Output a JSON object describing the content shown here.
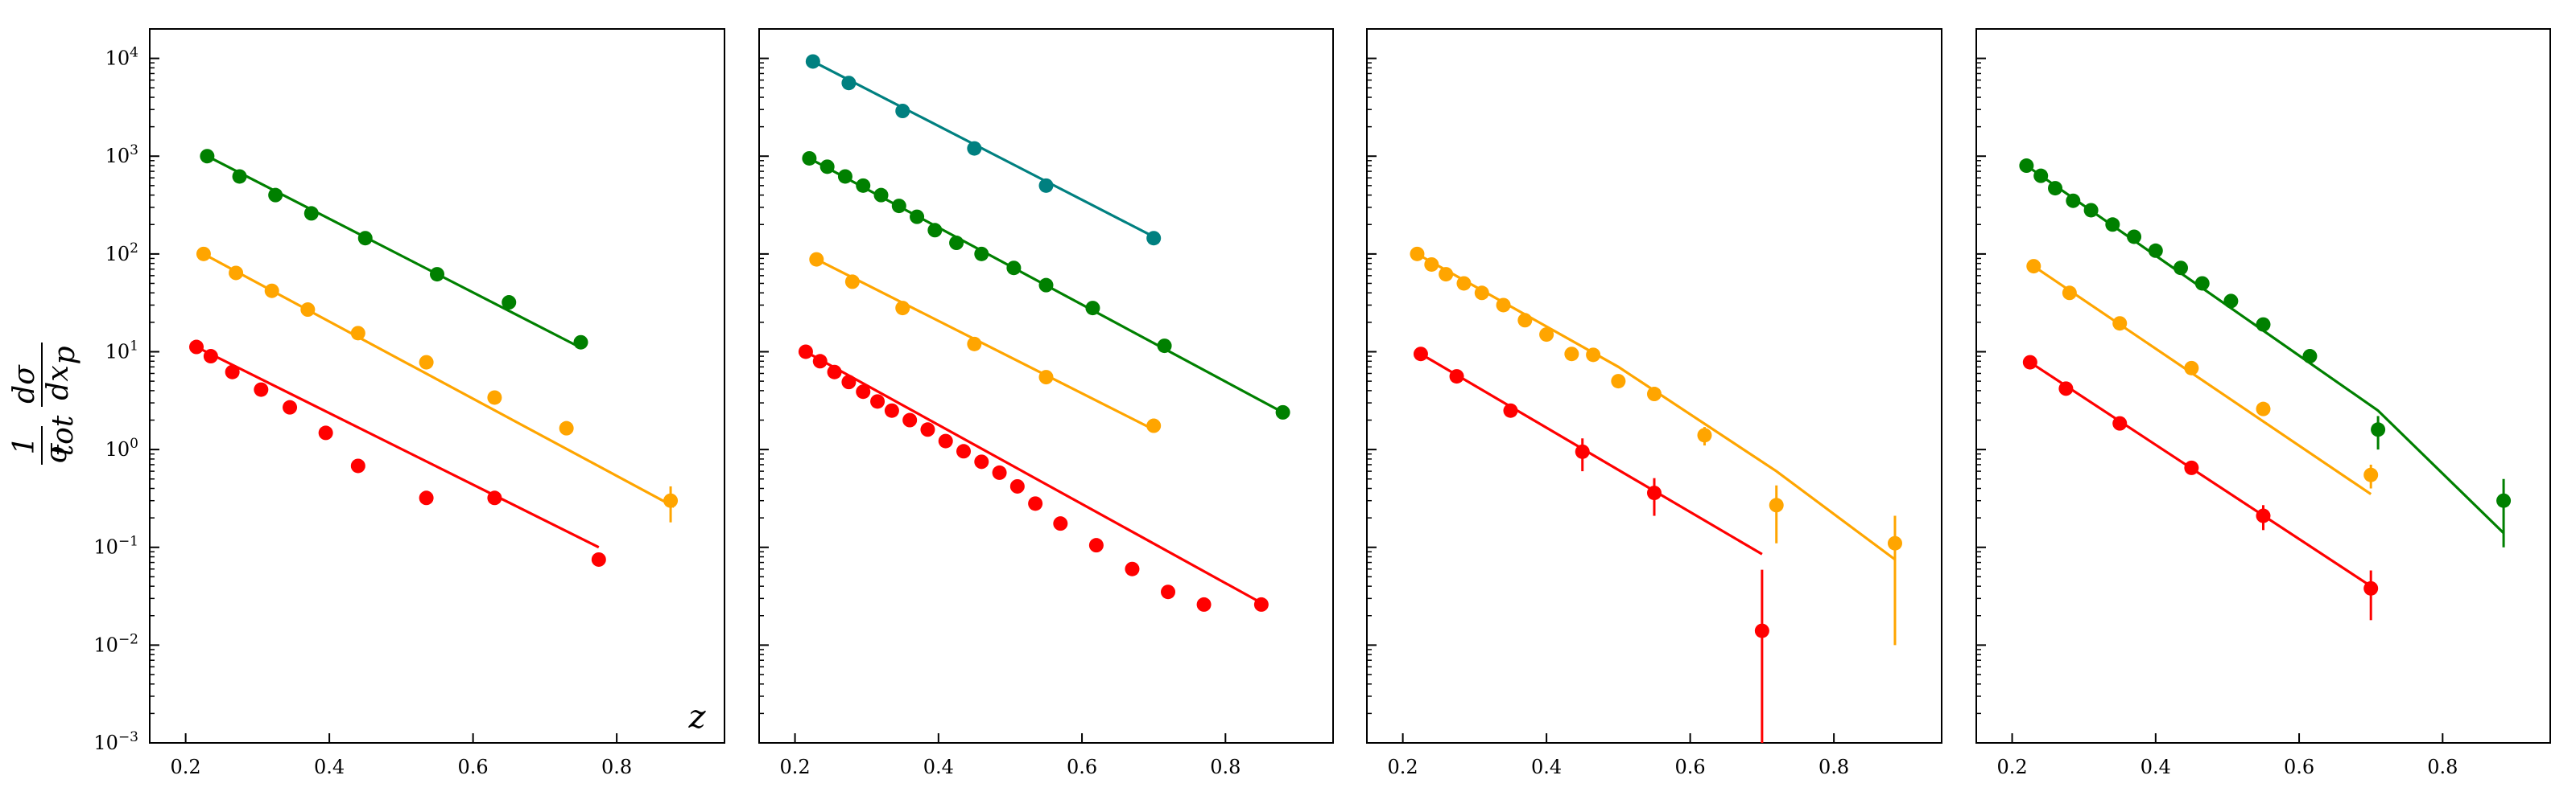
{
  "figure": {
    "ylabel": {
      "num": "1",
      "sigma": "σ",
      "sub": "tot",
      "d_sigma": "dσ",
      "dx": "dx",
      "p": "p"
    },
    "xlabel_first_panel": "z"
  },
  "colors": {
    "red": "#ff0000",
    "orange": "#ffa500",
    "green": "#008000",
    "teal": "#008080"
  },
  "chart_data": [
    {
      "type": "scatter",
      "yscale": "log",
      "xlim": [
        0.15,
        0.95
      ],
      "ylim": [
        0.001,
        20000
      ],
      "xticks": [
        0.2,
        0.4,
        0.6,
        0.8
      ],
      "yticks": [
        0.001,
        0.01,
        0.1,
        1,
        10,
        100,
        1000,
        10000
      ],
      "xlabel": "z",
      "series": [
        {
          "color": "green",
          "x": [
            0.23,
            0.275,
            0.325,
            0.375,
            0.45,
            0.55,
            0.65,
            0.75
          ],
          "y": [
            1000,
            620,
            400,
            260,
            145,
            62,
            32,
            12.5
          ],
          "fit": {
            "x": [
              0.23,
              0.75
            ],
            "y": [
              1000,
              11
            ]
          }
        },
        {
          "color": "orange",
          "x": [
            0.225,
            0.27,
            0.32,
            0.37,
            0.44,
            0.535,
            0.63,
            0.73,
            0.875
          ],
          "y": [
            100,
            64,
            42,
            27,
            15.5,
            7.8,
            3.4,
            1.65,
            0.3
          ],
          "yerr_lo": [
            0,
            0,
            0,
            0,
            0,
            0,
            0,
            0,
            0.12
          ],
          "yerr_hi": [
            0,
            0,
            0,
            0,
            0,
            0,
            0,
            0,
            0.12
          ],
          "fit": {
            "x": [
              0.225,
              0.88
            ],
            "y": [
              100,
              0.26
            ]
          }
        },
        {
          "color": "red",
          "x": [
            0.215,
            0.235,
            0.265,
            0.305,
            0.345,
            0.395,
            0.44,
            0.535,
            0.63,
            0.775
          ],
          "y": [
            11.2,
            9,
            6.2,
            4.1,
            2.7,
            1.48,
            0.68,
            0.32,
            0.32,
            0.075
          ],
          "fit": {
            "x": [
              0.215,
              0.775
            ],
            "y": [
              11.2,
              0.1
            ]
          }
        }
      ]
    },
    {
      "type": "scatter",
      "yscale": "log",
      "xlim": [
        0.15,
        0.95
      ],
      "ylim": [
        0.001,
        20000
      ],
      "xticks": [
        0.2,
        0.4,
        0.6,
        0.8
      ],
      "yticks": [
        0.001,
        0.01,
        0.1,
        1,
        10,
        100,
        1000,
        10000
      ],
      "series": [
        {
          "color": "teal",
          "x": [
            0.225,
            0.275,
            0.35,
            0.45,
            0.55,
            0.7
          ],
          "y": [
            9300,
            5600,
            2900,
            1200,
            500,
            145
          ],
          "fit": {
            "x": [
              0.225,
              0.7
            ],
            "y": [
              9300,
              150
            ]
          }
        },
        {
          "color": "green",
          "x": [
            0.22,
            0.245,
            0.27,
            0.295,
            0.32,
            0.345,
            0.37,
            0.395,
            0.425,
            0.46,
            0.505,
            0.55,
            0.615,
            0.715,
            0.88
          ],
          "y": [
            950,
            780,
            620,
            500,
            400,
            310,
            240,
            175,
            130,
            100,
            72,
            48,
            28,
            11.5,
            2.4
          ],
          "fit": {
            "x": [
              0.22,
              0.88
            ],
            "y": [
              950,
              2.4
            ]
          }
        },
        {
          "color": "orange",
          "x": [
            0.23,
            0.28,
            0.35,
            0.45,
            0.55,
            0.7
          ],
          "y": [
            88,
            52,
            28,
            12,
            5.5,
            1.75
          ],
          "fit": {
            "x": [
              0.23,
              0.7
            ],
            "y": [
              88,
              1.6
            ]
          }
        },
        {
          "color": "red",
          "x": [
            0.215,
            0.235,
            0.255,
            0.275,
            0.295,
            0.315,
            0.335,
            0.36,
            0.385,
            0.41,
            0.435,
            0.46,
            0.485,
            0.51,
            0.535,
            0.57,
            0.62,
            0.67,
            0.72,
            0.77,
            0.85
          ],
          "y": [
            10,
            8,
            6.2,
            4.9,
            3.9,
            3.1,
            2.5,
            2.0,
            1.6,
            1.22,
            0.96,
            0.75,
            0.58,
            0.42,
            0.28,
            0.175,
            0.105,
            0.06,
            0.035,
            0.026,
            0.026
          ],
          "fit": {
            "x": [
              0.215,
              0.85
            ],
            "y": [
              10,
              0.027
            ]
          }
        }
      ]
    },
    {
      "type": "scatter",
      "yscale": "log",
      "xlim": [
        0.15,
        0.95
      ],
      "ylim": [
        0.001,
        20000
      ],
      "xticks": [
        0.2,
        0.4,
        0.6,
        0.8
      ],
      "yticks": [
        0.001,
        0.01,
        0.1,
        1,
        10,
        100,
        1000,
        10000
      ],
      "series": [
        {
          "color": "orange",
          "x": [
            0.22,
            0.24,
            0.26,
            0.285,
            0.31,
            0.34,
            0.37,
            0.4,
            0.435,
            0.465,
            0.5,
            0.55,
            0.62,
            0.72,
            0.885
          ],
          "y": [
            100,
            78,
            62,
            50,
            40,
            30,
            21,
            15,
            9.5,
            9.3,
            5.0,
            3.7,
            1.4,
            0.27,
            0.11
          ],
          "yerr_lo": [
            0,
            0,
            0,
            0,
            0,
            0,
            0,
            0,
            0,
            0,
            0,
            0,
            0.3,
            0.16,
            0.1
          ],
          "yerr_hi": [
            0,
            0,
            0,
            0,
            0,
            0,
            0,
            0,
            0,
            0,
            0,
            0,
            0.3,
            0.16,
            0.1
          ],
          "fit": {
            "x": [
              0.22,
              0.5,
              0.72,
              0.885
            ],
            "y": [
              100,
              7.0,
              0.6,
              0.075
            ]
          }
        },
        {
          "color": "red",
          "x": [
            0.225,
            0.275,
            0.35,
            0.45,
            0.55,
            0.7
          ],
          "y": [
            9.5,
            5.6,
            2.5,
            0.95,
            0.36,
            0.014
          ],
          "yerr_lo": [
            0,
            0,
            0,
            0.35,
            0.15,
            0.013
          ],
          "yerr_hi": [
            0,
            0,
            0,
            0.35,
            0.15,
            0.045
          ],
          "fit": {
            "x": [
              0.225,
              0.7
            ],
            "y": [
              9.5,
              0.085
            ]
          }
        }
      ]
    },
    {
      "type": "scatter",
      "yscale": "log",
      "xlim": [
        0.15,
        0.95
      ],
      "ylim": [
        0.001,
        20000
      ],
      "xticks": [
        0.2,
        0.4,
        0.6,
        0.8
      ],
      "yticks": [
        0.001,
        0.01,
        0.1,
        1,
        10,
        100,
        1000,
        10000
      ],
      "series": [
        {
          "color": "green",
          "x": [
            0.22,
            0.24,
            0.26,
            0.285,
            0.31,
            0.34,
            0.37,
            0.4,
            0.435,
            0.465,
            0.505,
            0.55,
            0.615,
            0.71,
            0.885
          ],
          "y": [
            800,
            630,
            470,
            350,
            280,
            200,
            150,
            108,
            72,
            50,
            33,
            19,
            9,
            1.6,
            0.3
          ],
          "yerr_lo": [
            0,
            0,
            0,
            0,
            0,
            0,
            0,
            0,
            0,
            0,
            0,
            0,
            0,
            0.6,
            0.2
          ],
          "yerr_hi": [
            0,
            0,
            0,
            0,
            0,
            0,
            0,
            0,
            0,
            0,
            0,
            0,
            0,
            0.6,
            0.2
          ],
          "fit": {
            "x": [
              0.22,
              0.71,
              0.885
            ],
            "y": [
              800,
              2.5,
              0.14
            ]
          }
        },
        {
          "color": "orange",
          "x": [
            0.23,
            0.28,
            0.35,
            0.45,
            0.55,
            0.7
          ],
          "y": [
            75,
            40,
            19.5,
            6.8,
            2.6,
            0.55
          ],
          "yerr_lo": [
            0,
            0,
            0,
            0,
            0.3,
            0.15
          ],
          "yerr_hi": [
            0,
            0,
            0,
            0,
            0.3,
            0.15
          ],
          "fit": {
            "x": [
              0.23,
              0.7
            ],
            "y": [
              75,
              0.35
            ]
          }
        },
        {
          "color": "red",
          "x": [
            0.225,
            0.275,
            0.35,
            0.45,
            0.55,
            0.7
          ],
          "y": [
            7.8,
            4.2,
            1.85,
            0.65,
            0.21,
            0.038
          ],
          "yerr_lo": [
            0,
            0,
            0,
            0,
            0.06,
            0.02
          ],
          "yerr_hi": [
            0,
            0,
            0,
            0,
            0.06,
            0.02
          ],
          "fit": {
            "x": [
              0.225,
              0.7
            ],
            "y": [
              7.8,
              0.04
            ]
          }
        }
      ]
    }
  ]
}
